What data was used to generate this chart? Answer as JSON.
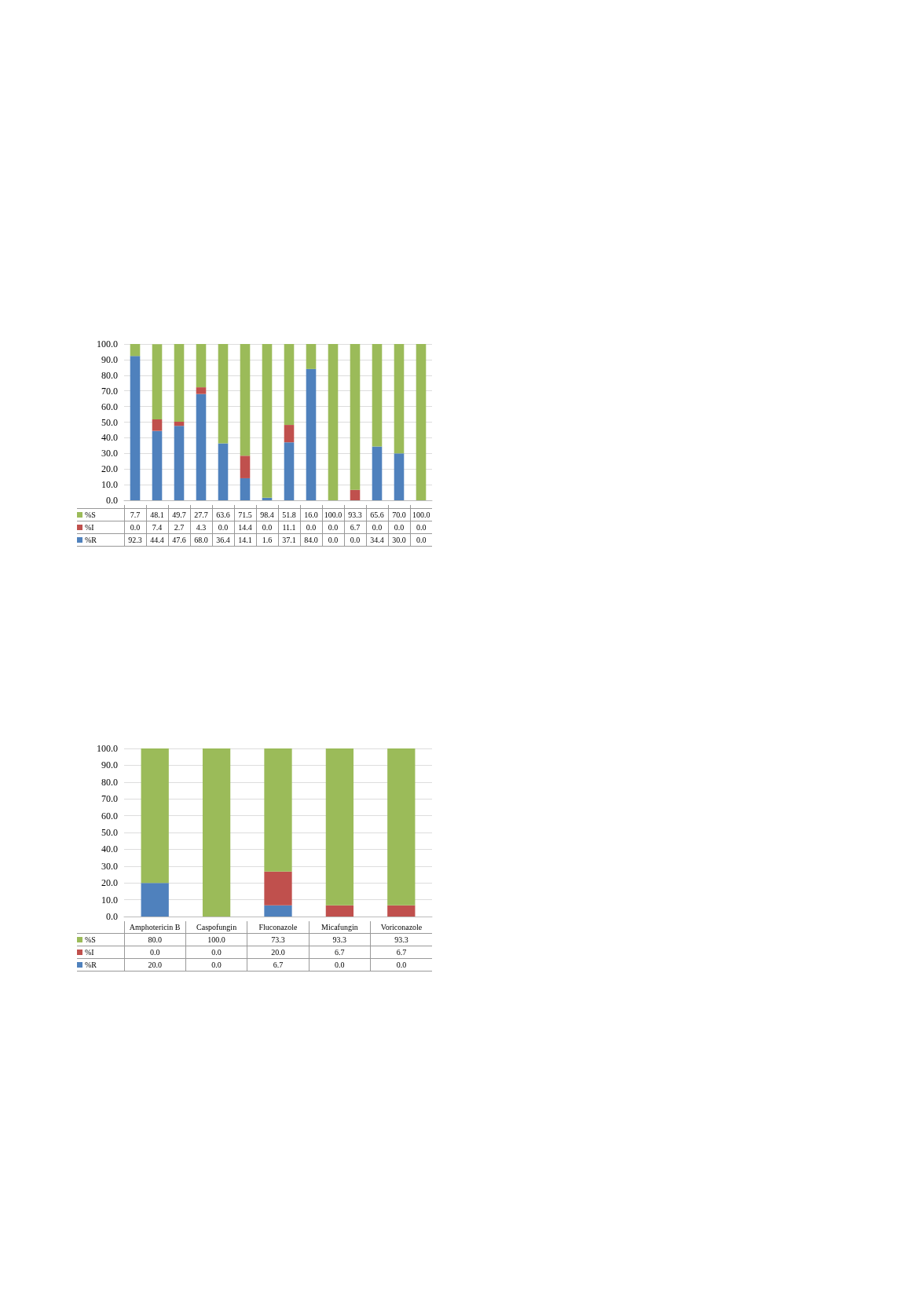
{
  "chart_data": [
    {
      "type": "bar",
      "stacked": true,
      "categories": [
        null,
        null,
        null,
        null,
        null,
        null,
        null,
        null,
        null,
        null,
        null,
        null,
        null,
        null
      ],
      "series": [
        {
          "name": "%R",
          "color": "#4f81bd",
          "values": [
            92.3,
            44.4,
            47.6,
            68.0,
            36.4,
            14.1,
            1.6,
            37.1,
            84.0,
            0.0,
            0.0,
            34.4,
            30.0,
            0.0
          ],
          "value_labels": [
            "92.3",
            "44.4",
            "47.6",
            "68.0",
            "36.4",
            "14.1",
            "1.6",
            "37.1",
            "84.0",
            "0.0",
            "0.0",
            "34.4",
            "30.0",
            "0.0"
          ]
        },
        {
          "name": "%I",
          "color": "#c0504d",
          "values": [
            0.0,
            7.4,
            2.7,
            4.3,
            0.0,
            14.4,
            0.0,
            11.1,
            0.0,
            0.0,
            6.7,
            0.0,
            0.0,
            0.0
          ],
          "value_labels": [
            "0.0",
            "7.4",
            "2.7",
            "4.3",
            "0.0",
            "14.4",
            "0.0",
            "11.1",
            "0.0",
            "0.0",
            "6.7",
            "0.0",
            "0.0",
            "0.0"
          ]
        },
        {
          "name": "%S",
          "color": "#9bbb59",
          "values": [
            7.7,
            48.1,
            49.7,
            27.7,
            63.6,
            71.5,
            98.4,
            51.8,
            16.0,
            100.0,
            93.3,
            65.6,
            70.0,
            100.0
          ],
          "value_labels": [
            "7.7",
            "48.1",
            "49.7",
            "27.7",
            "63.6",
            "71.5",
            "98.4",
            "51.8",
            "16.0",
            "100.0",
            "93.3",
            "65.6",
            "70.0",
            "100.0"
          ]
        }
      ],
      "ylim": [
        0,
        100
      ],
      "yticks": [
        {
          "value": 0,
          "label": "0.0"
        },
        {
          "value": 10,
          "label": "10.0"
        },
        {
          "value": 20,
          "label": "20.0"
        },
        {
          "value": 30,
          "label": "30.0"
        },
        {
          "value": 40,
          "label": "40.0"
        },
        {
          "value": 50,
          "label": "50.0"
        },
        {
          "value": 60,
          "label": "60.0"
        },
        {
          "value": 70,
          "label": "70.0"
        },
        {
          "value": 80,
          "label": "80.0"
        },
        {
          "value": 90,
          "label": "90.0"
        },
        {
          "value": 100,
          "label": "100.0"
        }
      ],
      "grid": "y",
      "legend": "bottom",
      "data_labels": true
    },
    {
      "type": "bar",
      "stacked": true,
      "categories": [
        "Amphotericin B",
        "Caspofungin",
        "Fluconazole",
        "Micafungin",
        "Voriconazole"
      ],
      "series": [
        {
          "name": "%R",
          "color": "#4f81bd",
          "values": [
            20.0,
            0.0,
            6.7,
            0.0,
            0.0
          ],
          "value_labels": [
            "20.0",
            "0.0",
            "6.7",
            "0.0",
            "0.0"
          ]
        },
        {
          "name": "%I",
          "color": "#c0504d",
          "values": [
            0.0,
            0.0,
            20.0,
            6.7,
            6.7
          ],
          "value_labels": [
            "0.0",
            "0.0",
            "20.0",
            "6.7",
            "6.7"
          ]
        },
        {
          "name": "%S",
          "color": "#9bbb59",
          "values": [
            80.0,
            100.0,
            73.3,
            93.3,
            93.3
          ],
          "value_labels": [
            "80.0",
            "100.0",
            "73.3",
            "93.3",
            "93.3"
          ]
        }
      ],
      "ylim": [
        0,
        100
      ],
      "yticks": [
        {
          "value": 0,
          "label": "0.0"
        },
        {
          "value": 10,
          "label": "10.0"
        },
        {
          "value": 20,
          "label": "20.0"
        },
        {
          "value": 30,
          "label": "30.0"
        },
        {
          "value": 40,
          "label": "40.0"
        },
        {
          "value": 50,
          "label": "50.0"
        },
        {
          "value": 60,
          "label": "60.0"
        },
        {
          "value": 70,
          "label": "70.0"
        },
        {
          "value": 80,
          "label": "80.0"
        },
        {
          "value": 90,
          "label": "90.0"
        },
        {
          "value": 100,
          "label": "100.0"
        }
      ],
      "grid": "y",
      "legend": "bottom",
      "data_labels": true
    }
  ]
}
